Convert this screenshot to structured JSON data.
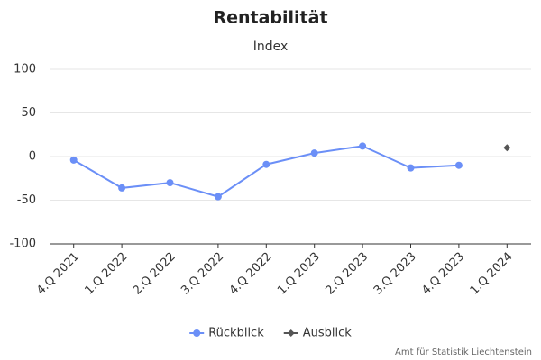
{
  "chart_data": {
    "type": "line",
    "title": "Rentabilität",
    "subtitle": "Index",
    "categories": [
      "4.Q 2021",
      "1.Q 2022",
      "2.Q 2022",
      "3.Q 2022",
      "4.Q 2022",
      "1.Q 2023",
      "2.Q 2023",
      "3.Q 2023",
      "4.Q 2023",
      "1.Q 2024"
    ],
    "series": [
      {
        "name": "Rückblick",
        "color": "#6b8ff7",
        "marker": "circle",
        "values": [
          -4,
          -36,
          -30,
          -46,
          -9,
          4,
          12,
          -13,
          -10,
          null
        ]
      },
      {
        "name": "Ausblick",
        "color": "#555555",
        "marker": "diamond",
        "values": [
          null,
          null,
          null,
          null,
          null,
          null,
          null,
          null,
          null,
          10
        ]
      }
    ],
    "ylim": [
      -100,
      100
    ],
    "yticks": [
      -100,
      -50,
      0,
      50,
      100
    ],
    "grid": true,
    "credit": "Amt für Statistik Liechtenstein"
  }
}
